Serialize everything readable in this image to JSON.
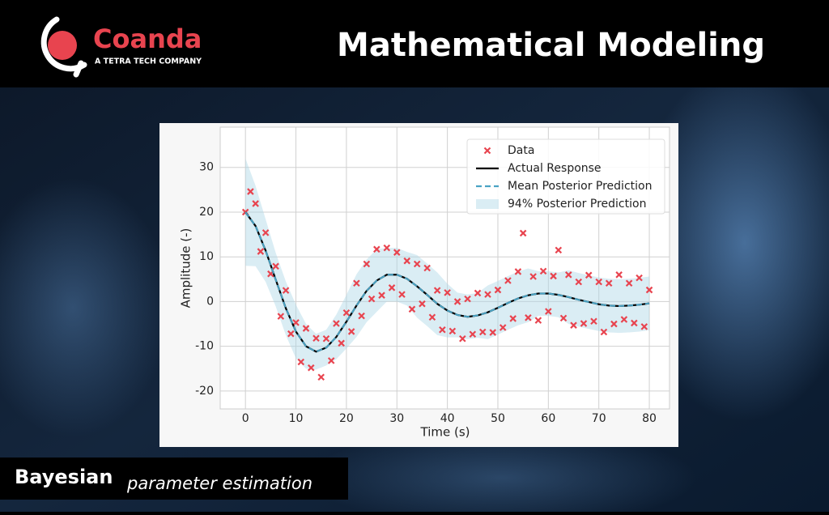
{
  "brand": {
    "name": "Coanda",
    "tagline": "A TETRA TECH COMPANY"
  },
  "title": "Mathematical Modeling",
  "caption": {
    "bold": "Bayesian",
    "italic": "parameter estimation"
  },
  "chart_data": {
    "type": "line",
    "xlabel": "Time (s)",
    "ylabel": "Amplitude (-)",
    "xlim": [
      -5,
      84
    ],
    "xticks": [
      0,
      10,
      20,
      30,
      40,
      50,
      60,
      70,
      80
    ],
    "ylim": [
      -24,
      39
    ],
    "yticks": [
      -20,
      -10,
      0,
      10,
      20,
      30
    ],
    "grid": true,
    "legend": "upper right",
    "series": [
      {
        "name": "Data",
        "type": "scatter",
        "color": "#e8444f",
        "x": [
          0,
          1,
          2,
          3,
          4,
          5,
          6,
          7,
          8,
          9,
          10,
          11,
          12,
          13,
          14,
          15,
          16,
          17,
          18,
          19,
          20,
          21,
          22,
          23,
          24,
          25,
          26,
          27,
          28,
          29,
          30,
          31,
          32,
          33,
          34,
          35,
          36,
          37,
          38,
          39,
          40,
          41,
          42,
          43,
          44,
          45,
          46,
          47,
          48,
          49,
          50,
          51,
          52,
          53,
          54,
          55,
          56,
          57,
          58,
          59,
          60,
          61,
          62,
          63,
          64,
          65,
          66,
          67,
          68,
          69,
          70,
          71,
          72,
          73,
          74,
          75,
          76,
          77,
          78,
          79,
          80
        ],
        "values": [
          20,
          24.6,
          21.9,
          11.2,
          15.4,
          6.2,
          7.9,
          -3.3,
          2.5,
          -7.2,
          -4.7,
          -13.5,
          -6,
          -14.8,
          -8.2,
          -16.9,
          -8.3,
          -13.2,
          -4.9,
          -9.3,
          -2.5,
          -6.7,
          4.1,
          -3.2,
          8.4,
          0.6,
          11.7,
          1.4,
          12,
          3.1,
          11,
          1.6,
          9.1,
          -1.7,
          8.4,
          -0.5,
          7.5,
          -3.5,
          2.5,
          -6.3,
          2,
          -6.6,
          0,
          -8.3,
          0.6,
          -7.3,
          1.9,
          -6.8,
          1.6,
          -6.9,
          2.6,
          -5.8,
          4.7,
          -3.8,
          6.7,
          15.3,
          -3.6,
          5.6,
          -4.2,
          6.8,
          -2.2,
          5.7,
          11.5,
          -3.7,
          6,
          -5.3,
          4.4,
          -4.9,
          5.9,
          -4.4,
          4.4,
          -6.8,
          4.1,
          -5,
          6,
          -4,
          4.1,
          -4.8,
          5.3,
          -5.6,
          2.6
        ]
      },
      {
        "name": "Actual Response",
        "type": "line",
        "color": "#000000",
        "x": [
          0,
          2,
          4,
          6,
          8,
          10,
          12,
          14,
          16,
          18,
          20,
          22,
          24,
          26,
          28,
          30,
          32,
          34,
          36,
          38,
          40,
          42,
          44,
          46,
          48,
          50,
          52,
          54,
          56,
          58,
          60,
          62,
          64,
          66,
          68,
          70,
          72,
          74,
          76,
          78,
          80
        ],
        "values": [
          20,
          16.9,
          11.4,
          4.9,
          -1.5,
          -6.7,
          -10,
          -11.2,
          -10.3,
          -7.9,
          -4.5,
          -0.9,
          2.4,
          4.7,
          6,
          6,
          5.1,
          3.4,
          1.5,
          -0.5,
          -2,
          -3,
          -3.4,
          -3.1,
          -2.4,
          -1.4,
          -0.3,
          0.7,
          1.4,
          1.8,
          1.8,
          1.5,
          1,
          0.4,
          -0.1,
          -0.6,
          -0.9,
          -1,
          -0.9,
          -0.7,
          -0.4
        ]
      },
      {
        "name": "Mean Posterior Prediction",
        "type": "dashed",
        "color": "#4aa3c4",
        "x": [
          0,
          2,
          4,
          6,
          8,
          10,
          12,
          14,
          16,
          18,
          20,
          22,
          24,
          26,
          28,
          30,
          32,
          34,
          36,
          38,
          40,
          42,
          44,
          46,
          48,
          50,
          52,
          54,
          56,
          58,
          60,
          62,
          64,
          66,
          68,
          70,
          72,
          74,
          76,
          78,
          80
        ],
        "values": [
          20,
          16.9,
          11.4,
          4.9,
          -1.5,
          -6.7,
          -10,
          -11.2,
          -10.3,
          -7.9,
          -4.5,
          -0.9,
          2.4,
          4.7,
          6,
          6,
          5.1,
          3.4,
          1.5,
          -0.5,
          -2,
          -3,
          -3.4,
          -3.1,
          -2.4,
          -1.4,
          -0.3,
          0.7,
          1.4,
          1.8,
          1.8,
          1.5,
          1,
          0.4,
          -0.1,
          -0.6,
          -0.9,
          -1,
          -0.9,
          -0.7,
          -0.4
        ]
      },
      {
        "name": "94% Posterior Prediction",
        "type": "band",
        "color": "#add8e6",
        "x": [
          0,
          2,
          4,
          6,
          8,
          10,
          12,
          14,
          16,
          18,
          20,
          22,
          24,
          26,
          28,
          30,
          32,
          34,
          36,
          38,
          40,
          42,
          44,
          46,
          48,
          50,
          52,
          54,
          56,
          58,
          60,
          62,
          64,
          66,
          68,
          70,
          72,
          74,
          76,
          78,
          80
        ],
        "lower": [
          8,
          7.9,
          4.4,
          -1.1,
          -7.5,
          -12.7,
          -15,
          -15.2,
          -14.3,
          -12.9,
          -10.5,
          -7.9,
          -4.6,
          -2.3,
          0,
          0,
          -0.9,
          -3.6,
          -5.5,
          -7.5,
          -8,
          -8,
          -8.4,
          -8.1,
          -8.4,
          -7.4,
          -6.3,
          -5.3,
          -4.6,
          -3.2,
          -3.2,
          -3.5,
          -5,
          -5.6,
          -6.1,
          -6.6,
          -6.9,
          -7,
          -6.9,
          -6.7,
          -6.4
        ],
        "upper": [
          32,
          25.9,
          18.4,
          10.9,
          4.5,
          -0.7,
          -5,
          -7.2,
          -6.3,
          -2.9,
          1.5,
          6.1,
          9.4,
          11.7,
          12,
          12,
          11.1,
          10.4,
          8.5,
          6.5,
          4,
          2,
          1.6,
          1.9,
          3.6,
          4.6,
          5.7,
          6.7,
          7.4,
          6.8,
          6.8,
          6.5,
          7,
          6.4,
          5.9,
          5.4,
          5.1,
          5,
          5.1,
          5.3,
          5.6
        ]
      }
    ]
  }
}
